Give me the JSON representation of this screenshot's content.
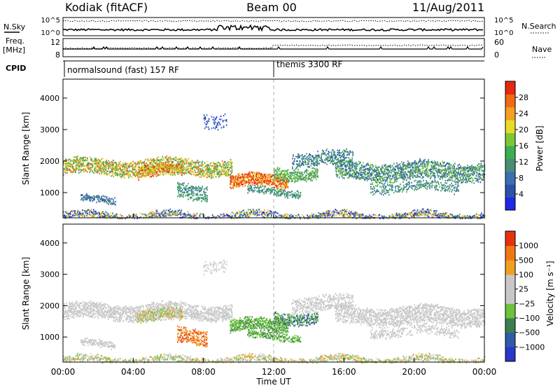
{
  "header": {
    "station": "Kodiak (fitACF)",
    "beam": "Beam 00",
    "date": "11/Aug/2011"
  },
  "info_panels": {
    "nsky_label": "N.Sky",
    "nsky_ticks": [
      "10^5",
      "10^0"
    ],
    "nsearch_label": "N.Search",
    "nsearch_ticks": [
      "10^5",
      "10^0"
    ],
    "freq_label_1": "Freq.",
    "freq_label_2": "[MHz]",
    "freq_ticks": [
      "12",
      "8"
    ],
    "nave_label": "Nave",
    "nave_ticks": [
      "60",
      "0"
    ],
    "cpid_label": "CPID",
    "cpid_segments": [
      {
        "text": "normalsound (fast) 157 RF",
        "start_hour": 0
      },
      {
        "text": "themis 3300 RF",
        "start_hour": 12
      }
    ]
  },
  "chart_data": [
    {
      "type": "heatmap",
      "name_key": "power",
      "ylabel": "Slant Range [km]",
      "xlabel": "Time UT",
      "xlim_hours": [
        0,
        24
      ],
      "ylim": [
        200,
        4600
      ],
      "yticks": [
        1000,
        2000,
        3000,
        4000
      ],
      "colorbar": {
        "label": "Power [dB]",
        "ticks": [
          "4",
          "8",
          "12",
          "16",
          "20",
          "24",
          "28"
        ],
        "colors": [
          "#1e28e6",
          "#2a52a8",
          "#3b6fb0",
          "#478f74",
          "#3fae50",
          "#7dc832",
          "#e6dc28",
          "#f5a01e",
          "#f06a14",
          "#e6280f"
        ]
      }
    },
    {
      "type": "heatmap",
      "name_key": "velocity",
      "ylabel": "Slant Range [km]",
      "xlabel": "Time UT",
      "xlim_hours": [
        0,
        24
      ],
      "ylim": [
        200,
        4600
      ],
      "yticks": [
        1000,
        2000,
        3000,
        4000
      ],
      "xticks": [
        "00:00",
        "04:00",
        "08:00",
        "12:00",
        "16:00",
        "20:00",
        "00:00"
      ],
      "colorbar": {
        "label": "Velocity [m s⁻¹]",
        "ticks": [
          "1000",
          "500",
          "100",
          "25",
          "−25",
          "−100",
          "−500",
          "−1000"
        ],
        "colors": [
          "#2838c8",
          "#2f5ba8",
          "#3e7d4e",
          "#6cc23c",
          "#c8c8c8",
          "#c8c8c8",
          "#f0a020",
          "#f07814",
          "#e6320f"
        ]
      }
    }
  ]
}
